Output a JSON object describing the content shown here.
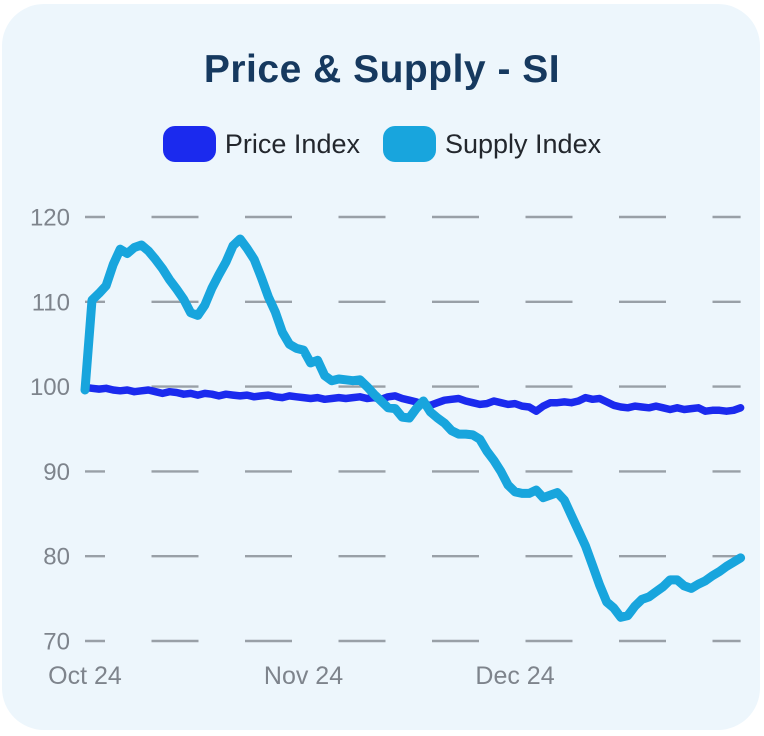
{
  "title": "Price & Supply - SI",
  "legend": [
    {
      "label": "Price Index",
      "color": "#1b2aee"
    },
    {
      "label": "Supply Index",
      "color": "#18a5dd"
    }
  ],
  "colors": {
    "card_background": "#edf6fc",
    "title_text": "#16395f",
    "grid_line": "#99a0a7",
    "axis_text": "#7e848c",
    "price_line": "#1b2aee",
    "supply_line": "#18a5dd"
  },
  "chart_data": {
    "type": "line",
    "title": "Price & Supply - SI",
    "xlabel": "",
    "ylabel": "",
    "ylim": [
      70,
      120
    ],
    "y_ticks": [
      120,
      110,
      100,
      90,
      80,
      70
    ],
    "x_tick_labels": [
      "Oct 24",
      "Nov 24",
      "Dec 24"
    ],
    "x_tick_positions_days": [
      0,
      31,
      61
    ],
    "x_total_days": 93,
    "grid": "dashed-horizontal",
    "legend_position": "top",
    "series": [
      {
        "name": "Price Index",
        "color": "#1b2aee",
        "line_width": 7.5,
        "values": [
          99.9,
          99.8,
          99.7,
          99.8,
          99.6,
          99.5,
          99.6,
          99.4,
          99.5,
          99.6,
          99.4,
          99.2,
          99.4,
          99.3,
          99.1,
          99.2,
          99.0,
          99.2,
          99.1,
          98.9,
          99.1,
          99.0,
          98.9,
          99.0,
          98.8,
          98.9,
          99.0,
          98.8,
          98.7,
          98.9,
          98.8,
          98.7,
          98.6,
          98.7,
          98.5,
          98.6,
          98.7,
          98.6,
          98.7,
          98.8,
          98.6,
          98.7,
          98.5,
          98.8,
          98.9,
          98.6,
          98.4,
          98.2,
          97.9,
          97.8,
          98.1,
          98.4,
          98.5,
          98.6,
          98.3,
          98.1,
          97.9,
          98.0,
          98.3,
          98.1,
          97.9,
          98.0,
          97.7,
          97.6,
          97.1,
          97.7,
          98.1,
          98.1,
          98.2,
          98.1,
          98.3,
          98.7,
          98.5,
          98.6,
          98.2,
          97.8,
          97.6,
          97.5,
          97.7,
          97.6,
          97.5,
          97.7,
          97.5,
          97.3,
          97.5,
          97.3,
          97.4,
          97.5,
          97.1,
          97.2,
          97.2,
          97.1,
          97.2,
          97.5
        ]
      },
      {
        "name": "Supply Index",
        "color": "#18a5dd",
        "line_width": 9,
        "values": [
          99.6,
          110.2,
          111.0,
          111.9,
          114.4,
          116.2,
          115.7,
          116.4,
          116.7,
          116.0,
          115.0,
          113.9,
          112.6,
          111.5,
          110.3,
          108.7,
          108.4,
          109.6,
          111.6,
          113.2,
          114.7,
          116.6,
          117.4,
          116.3,
          115.0,
          112.9,
          110.6,
          108.8,
          106.4,
          105.0,
          104.5,
          104.3,
          102.8,
          103.1,
          101.3,
          100.7,
          100.9,
          100.8,
          100.7,
          100.8,
          100.0,
          99.1,
          98.3,
          97.5,
          97.4,
          96.4,
          96.3,
          97.4,
          98.3,
          97.0,
          96.3,
          95.7,
          94.8,
          94.4,
          94.4,
          94.3,
          93.8,
          92.4,
          91.3,
          90.0,
          88.4,
          87.6,
          87.4,
          87.4,
          87.8,
          86.9,
          87.2,
          87.5,
          86.6,
          84.8,
          83.0,
          81.2,
          78.9,
          76.6,
          74.6,
          73.9,
          72.8,
          73.0,
          74.1,
          74.9,
          75.2,
          75.8,
          76.4,
          77.2,
          77.2,
          76.5,
          76.2,
          76.7,
          77.1,
          77.7,
          78.2,
          78.8,
          79.3,
          79.8
        ]
      }
    ]
  }
}
